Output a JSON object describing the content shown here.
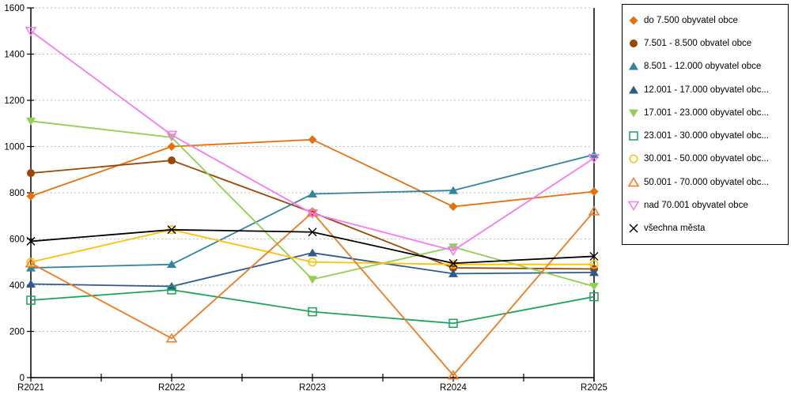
{
  "chart_data": {
    "type": "line",
    "categories": [
      "R2021",
      "R2022",
      "R2023",
      "R2024",
      "R2025"
    ],
    "ylim": [
      0,
      1600
    ],
    "yticks": [
      0,
      200,
      400,
      600,
      800,
      1000,
      1200,
      1400,
      1600
    ],
    "grid": "horizontal-dashed",
    "legend_position": "right",
    "title": "",
    "xlabel": "",
    "ylabel": "",
    "series": [
      {
        "label": "do 7.500 obyvatel obce",
        "marker": "diamond",
        "color": "#E8700A",
        "values": [
          785,
          1000,
          1030,
          740,
          805
        ]
      },
      {
        "label": "7.501 - 8.500 obvatel obce",
        "marker": "circle",
        "color": "#9C4708",
        "values": [
          885,
          940,
          715,
          475,
          470
        ]
      },
      {
        "label": "8.501 - 12.000 obyvatel obce",
        "marker": "triangle-up",
        "color": "#31859C",
        "values": [
          475,
          490,
          795,
          810,
          965
        ]
      },
      {
        "label": "12.001 - 17.000 obyvatel obc...",
        "marker": "triangle-up",
        "color": "#2F5B8C",
        "values": [
          405,
          395,
          540,
          450,
          455
        ]
      },
      {
        "label": "17.001 - 23.000 obyvatel obc...",
        "marker": "triangle-down",
        "color": "#92D050",
        "values": [
          1110,
          1040,
          425,
          565,
          395
        ]
      },
      {
        "label": "23.001 - 30.000 obyvatel obc...",
        "marker": "square-open",
        "color": "#1CA35B",
        "values": [
          335,
          380,
          285,
          235,
          350
        ]
      },
      {
        "label": "30.001 - 50.000 obyvatel obc...",
        "marker": "circle-open",
        "color": "#FFC000",
        "values": [
          500,
          640,
          500,
          490,
          490
        ]
      },
      {
        "label": "50.001 - 70.000 obyvatel obc...",
        "marker": "triangle-up-open",
        "color": "#F4791F",
        "values": [
          495,
          170,
          715,
          10,
          720
        ]
      },
      {
        "label": "nad 70.001 obyvatel obce",
        "marker": "triangle-down-open",
        "color": "#FA78F5",
        "values": [
          1500,
          1050,
          710,
          550,
          950
        ]
      },
      {
        "label": "všechna města",
        "marker": "x",
        "color": "#000000",
        "values": [
          590,
          640,
          630,
          495,
          525
        ]
      }
    ],
    "axis_color": "#000000",
    "gridline_color": "#BFBFBF"
  }
}
